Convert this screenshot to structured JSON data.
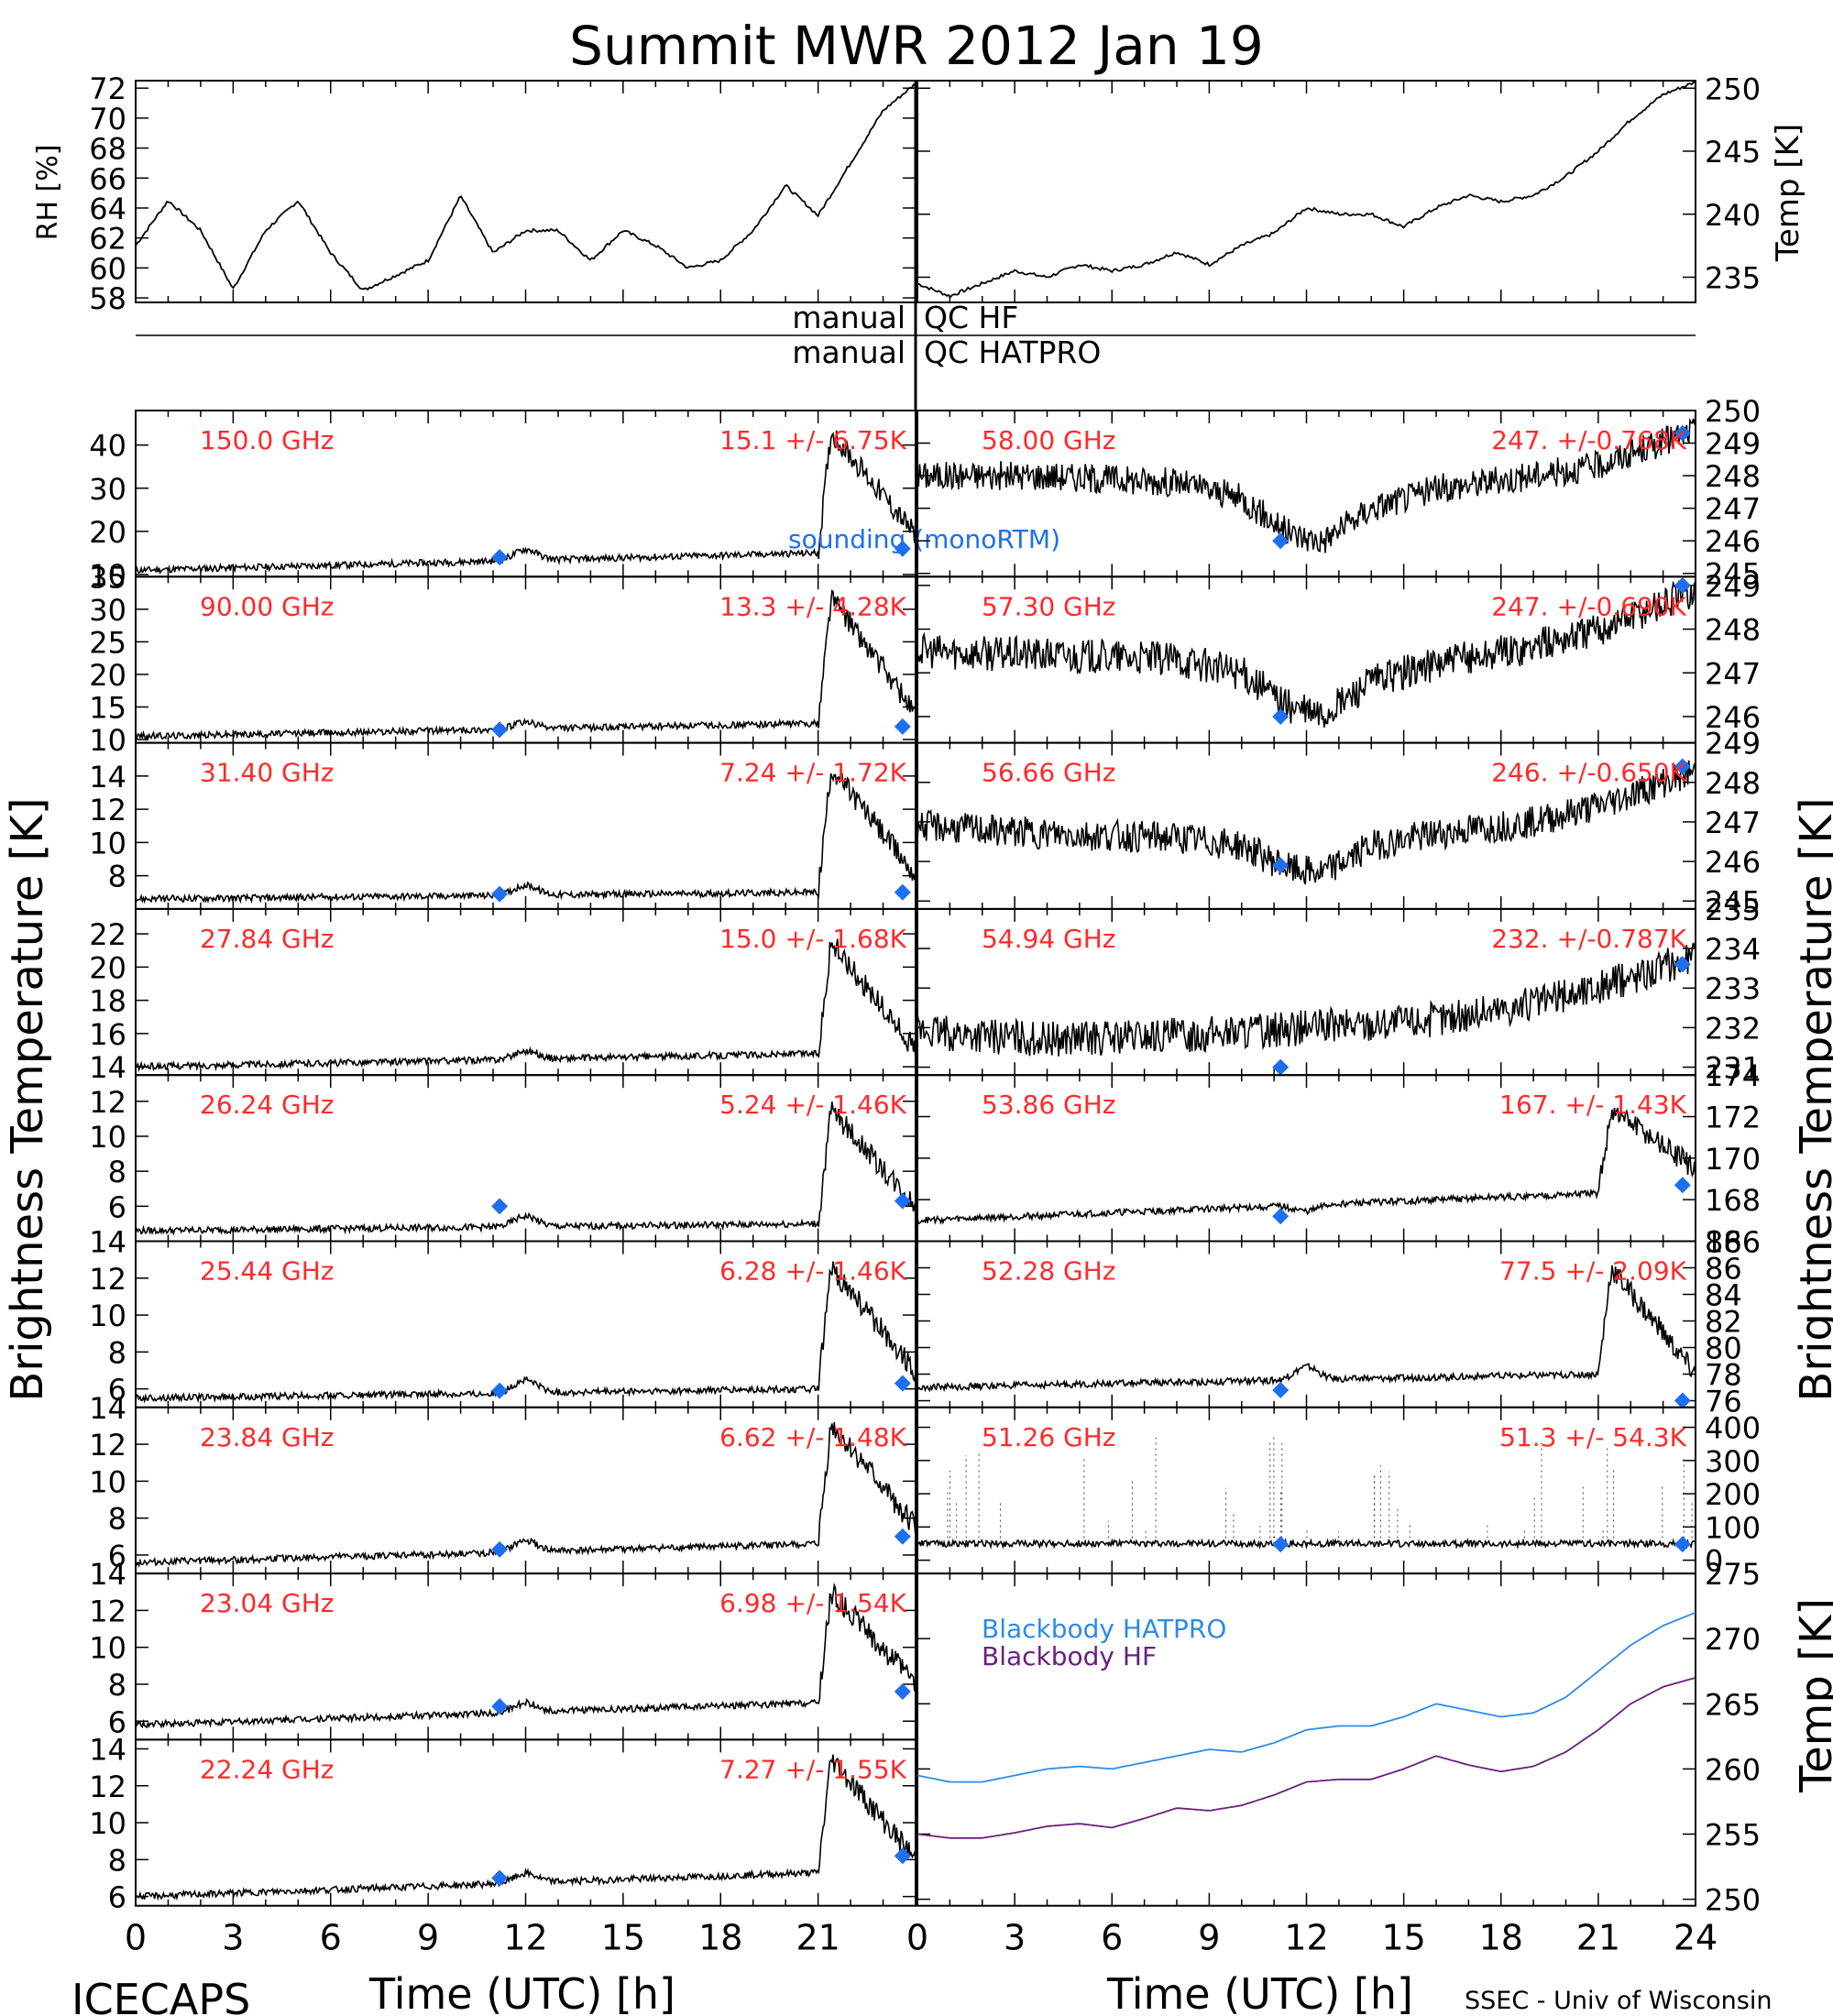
{
  "title": "Summit MWR 2012 Jan 19",
  "footer": {
    "project": "ICECAPS",
    "credit": "SSEC - Univ of Wisconsin"
  },
  "qc": {
    "label_left": "manual",
    "label_left2": "manual",
    "label_hf": "QC HF",
    "label_hatpro": "QC HATPRO"
  },
  "labels": {
    "rh_axis": "RH [%]",
    "temp_axis": "Temp [K]",
    "bt_left": "Brightness Temperature [K]",
    "bt_right": "Brightness Temperature [K]",
    "bb_temp_axis": "Temp [K]",
    "xlabel_left": "Time (UTC) [h]",
    "xlabel_right": "Time (UTC) [h]",
    "sounding_legend": "sounding (monoRTM)"
  },
  "colors": {
    "trace": "#000000",
    "channel_text": "#ff2a2a",
    "sounding": "#1e6ff0",
    "bb_hatpro": "#2d8be8",
    "bb_hf": "#6a1f7e"
  },
  "chart_data": [
    {
      "id": "rh",
      "type": "line",
      "ylabel": "RH [%]",
      "ylim": [
        57.7,
        72.5
      ],
      "yticks": [
        58,
        60,
        62,
        64,
        66,
        68,
        70,
        72
      ],
      "x": [
        0,
        1,
        2,
        3,
        4,
        5,
        6,
        7,
        8,
        9,
        10,
        11,
        12,
        13,
        14,
        15,
        16,
        17,
        18,
        19,
        20,
        21,
        22,
        23,
        24
      ],
      "values": [
        61.5,
        64.5,
        62.5,
        58.6,
        62.5,
        64.5,
        61.0,
        58.5,
        59.5,
        60.5,
        64.8,
        61.0,
        62.5,
        62.5,
        60.5,
        62.5,
        61.5,
        60.0,
        60.5,
        62.5,
        65.5,
        63.5,
        67.0,
        70.5,
        72.3
      ]
    },
    {
      "id": "temp",
      "type": "line",
      "ylabel": "Temp [K]",
      "ylim": [
        233,
        250.6
      ],
      "yticks": [
        235,
        240,
        245,
        250
      ],
      "x": [
        0,
        1,
        2,
        3,
        4,
        5,
        6,
        7,
        8,
        9,
        10,
        11,
        12,
        13,
        14,
        15,
        16,
        17,
        18,
        19,
        20,
        21,
        22,
        23,
        24
      ],
      "values": [
        234.5,
        233.5,
        234.5,
        235.5,
        235.0,
        236.0,
        235.5,
        236.0,
        237.0,
        236.0,
        237.5,
        238.5,
        240.5,
        240.0,
        240.0,
        239.0,
        240.5,
        241.5,
        241.0,
        241.5,
        243.0,
        245.0,
        247.5,
        249.5,
        250.5
      ]
    },
    {
      "id": "ch150",
      "type": "scatter",
      "channel": "150.0 GHz",
      "stats": "15.1 +/- 6.75K",
      "ylim": [
        9.5,
        48
      ],
      "yticks": [
        10,
        20,
        30,
        40
      ],
      "baseline": [
        11,
        15
      ],
      "bump": 17.5,
      "peak": 43,
      "end": 19,
      "sounding": [
        [
          11.2,
          14
        ],
        [
          23.6,
          16
        ]
      ]
    },
    {
      "id": "ch90",
      "type": "scatter",
      "channel": "90.00 GHz",
      "stats": "13.3 +/- 4.28K",
      "ylim": [
        9.5,
        35
      ],
      "yticks": [
        10,
        15,
        20,
        25,
        30,
        35
      ],
      "baseline": [
        10.5,
        12.5
      ],
      "bump": 13.5,
      "peak": 32,
      "end": 14,
      "sounding": [
        [
          11.2,
          11.5
        ],
        [
          23.6,
          12
        ]
      ]
    },
    {
      "id": "ch3140",
      "type": "scatter",
      "channel": "31.40 GHz",
      "stats": "7.24 +/- 1.72K",
      "ylim": [
        6,
        16
      ],
      "yticks": [
        8,
        10,
        12,
        14
      ],
      "baseline": [
        6.6,
        7.0
      ],
      "bump": 7.6,
      "peak": 14.5,
      "end": 8,
      "sounding": [
        [
          11.2,
          6.9
        ],
        [
          23.6,
          7.0
        ]
      ]
    },
    {
      "id": "ch2784",
      "type": "scatter",
      "channel": "27.84 GHz",
      "stats": "15.0 +/- 1.68K",
      "ylim": [
        13.5,
        23.5
      ],
      "yticks": [
        14,
        16,
        18,
        20,
        22
      ],
      "baseline": [
        14,
        14.8
      ],
      "bump": 15.3,
      "peak": 21.5,
      "end": 15,
      "sounding": []
    },
    {
      "id": "ch2624",
      "type": "scatter",
      "channel": "26.24 GHz",
      "stats": "5.24 +/- 1.46K",
      "ylim": [
        4,
        13.5
      ],
      "yticks": [
        6,
        8,
        10,
        12
      ],
      "baseline": [
        4.6,
        5.0
      ],
      "bump": 5.6,
      "peak": 11.5,
      "end": 6,
      "sounding": [
        [
          11.2,
          6.0
        ],
        [
          23.6,
          6.3
        ]
      ]
    },
    {
      "id": "ch2544",
      "type": "scatter",
      "channel": "25.44 GHz",
      "stats": "6.28 +/- 1.46K",
      "ylim": [
        5,
        14
      ],
      "yticks": [
        6,
        8,
        10,
        12,
        14
      ],
      "baseline": [
        5.5,
        6.0
      ],
      "bump": 6.7,
      "peak": 12.5,
      "end": 7,
      "sounding": [
        [
          11.2,
          5.9
        ],
        [
          23.6,
          6.3
        ]
      ]
    },
    {
      "id": "ch2384",
      "type": "scatter",
      "channel": "23.84 GHz",
      "stats": "6.62 +/- 1.48K",
      "ylim": [
        5,
        14
      ],
      "yticks": [
        6,
        8,
        10,
        12,
        14
      ],
      "baseline": [
        5.6,
        6.6
      ],
      "bump": 7.2,
      "peak": 13,
      "end": 7.5,
      "sounding": [
        [
          11.2,
          6.3
        ],
        [
          23.6,
          7.0
        ]
      ]
    },
    {
      "id": "ch2304",
      "type": "scatter",
      "channel": "23.04 GHz",
      "stats": "6.98 +/- 1.54K",
      "ylim": [
        5,
        14
      ],
      "yticks": [
        6,
        8,
        10,
        12,
        14
      ],
      "baseline": [
        5.8,
        7.0
      ],
      "bump": 7.5,
      "peak": 13,
      "end": 8,
      "sounding": [
        [
          11.2,
          6.8
        ],
        [
          23.6,
          7.6
        ]
      ]
    },
    {
      "id": "ch2224",
      "type": "scatter",
      "channel": "22.24 GHz",
      "stats": "7.27 +/- 1.55K",
      "ylim": [
        5.5,
        14.5
      ],
      "yticks": [
        6,
        8,
        10,
        12,
        14
      ],
      "baseline": [
        6.0,
        7.3
      ],
      "bump": 7.8,
      "peak": 13.5,
      "end": 8,
      "sounding": [
        [
          11.2,
          7.0
        ],
        [
          23.6,
          8.2
        ]
      ]
    },
    {
      "id": "ch5800",
      "type": "scatter",
      "channel": "58.00 GHz",
      "stats": "247. +/-0.768K",
      "ylim": [
        244.9,
        250
      ],
      "yticks": [
        245,
        246,
        247,
        248,
        249,
        250
      ],
      "profile": [
        [
          0,
          248
        ],
        [
          4,
          248
        ],
        [
          8,
          247.8
        ],
        [
          10,
          247.3
        ],
        [
          11.5,
          246.2
        ],
        [
          12.5,
          246
        ],
        [
          14,
          247
        ],
        [
          16,
          247.6
        ],
        [
          19,
          248
        ],
        [
          21,
          248.3
        ],
        [
          24,
          249.4
        ]
      ],
      "noise": 0.45,
      "sounding": [
        [
          11.2,
          246
        ],
        [
          23.6,
          249.3
        ]
      ]
    },
    {
      "id": "ch5730",
      "type": "scatter",
      "channel": "57.30 GHz",
      "stats": "247. +/-0.690K",
      "ylim": [
        245.4,
        249.2
      ],
      "yticks": [
        246,
        247,
        248,
        249
      ],
      "profile": [
        [
          0,
          247.5
        ],
        [
          4,
          247.4
        ],
        [
          8,
          247.3
        ],
        [
          10,
          247
        ],
        [
          11.5,
          246.2
        ],
        [
          12.5,
          246
        ],
        [
          14,
          246.8
        ],
        [
          16,
          247.2
        ],
        [
          19,
          247.6
        ],
        [
          21,
          248
        ],
        [
          24,
          248.9
        ]
      ],
      "noise": 0.4,
      "sounding": [
        [
          11.2,
          246
        ],
        [
          23.6,
          249
        ]
      ]
    },
    {
      "id": "ch5666",
      "type": "scatter",
      "channel": "56.66 GHz",
      "stats": "246. +/-0.650K",
      "ylim": [
        244.8,
        249
      ],
      "yticks": [
        245,
        246,
        247,
        248,
        249
      ],
      "profile": [
        [
          0,
          246.9
        ],
        [
          4,
          246.7
        ],
        [
          8,
          246.6
        ],
        [
          10,
          246.4
        ],
        [
          11.5,
          245.8
        ],
        [
          12.5,
          245.7
        ],
        [
          14,
          246.4
        ],
        [
          16,
          246.7
        ],
        [
          19,
          247
        ],
        [
          21,
          247.4
        ],
        [
          24,
          248.3
        ]
      ],
      "noise": 0.4,
      "sounding": [
        [
          11.2,
          245.9
        ],
        [
          23.6,
          248.4
        ]
      ]
    },
    {
      "id": "ch5494",
      "type": "scatter",
      "channel": "54.94 GHz",
      "stats": "232. +/-0.787K",
      "ylim": [
        230.8,
        235
      ],
      "yticks": [
        231,
        232,
        233,
        234,
        235
      ],
      "profile": [
        [
          0,
          231.9
        ],
        [
          4,
          231.7
        ],
        [
          8,
          231.8
        ],
        [
          12,
          232
        ],
        [
          16,
          232.2
        ],
        [
          19,
          232.6
        ],
        [
          21,
          233
        ],
        [
          24,
          233.8
        ]
      ],
      "noise": 0.45,
      "sounding": [
        [
          11.2,
          231
        ],
        [
          23.6,
          233.6
        ]
      ]
    },
    {
      "id": "ch5386",
      "type": "scatter",
      "channel": "53.86 GHz",
      "stats": "167. +/- 1.43K",
      "ylim": [
        166,
        174
      ],
      "yticks": [
        166,
        168,
        170,
        172,
        174
      ],
      "baseline": [
        167,
        168.3
      ],
      "bump": 168,
      "peak": 172.3,
      "end": 169.5,
      "sounding": [
        [
          11.2,
          167.2
        ],
        [
          23.6,
          168.7
        ]
      ]
    },
    {
      "id": "ch5228",
      "type": "scatter",
      "channel": "52.28 GHz",
      "stats": "77.5 +/- 2.09K",
      "ylim": [
        75.5,
        88
      ],
      "yticks": [
        76,
        78,
        80,
        82,
        84,
        86,
        88
      ],
      "baseline": [
        77,
        78
      ],
      "bump": 79,
      "peak": 86,
      "end": 78,
      "sounding": [
        [
          11.2,
          76.8
        ],
        [
          23.6,
          76
        ]
      ]
    },
    {
      "id": "ch5126",
      "type": "scatter",
      "channel": "51.26 GHz",
      "stats": "51.3 +/- 54.3K",
      "ylim": [
        -40,
        460
      ],
      "yticks": [
        0,
        100,
        200,
        300,
        400
      ],
      "flat": 50,
      "sounding": [
        [
          11.2,
          48
        ],
        [
          23.6,
          48
        ]
      ]
    },
    {
      "id": "blackbody",
      "type": "line",
      "ylabel": "Temp [K]",
      "ylim": [
        249.5,
        275
      ],
      "yticks": [
        250,
        255,
        260,
        265,
        270,
        275
      ],
      "x": [
        0,
        1,
        2,
        3,
        4,
        5,
        6,
        7,
        8,
        9,
        10,
        11,
        12,
        13,
        14,
        15,
        16,
        17,
        18,
        19,
        20,
        21,
        22,
        23,
        24
      ],
      "series": [
        {
          "name": "Blackbody HATPRO",
          "values": [
            259.5,
            259.0,
            259.0,
            259.5,
            260.0,
            260.2,
            260.0,
            260.5,
            261.0,
            261.5,
            261.3,
            262.0,
            263.0,
            263.3,
            263.3,
            264.0,
            265.0,
            264.5,
            264.0,
            264.3,
            265.5,
            267.5,
            269.5,
            271.0,
            272.0
          ]
        },
        {
          "name": "Blackbody HF",
          "values": [
            255.0,
            254.7,
            254.7,
            255.1,
            255.6,
            255.8,
            255.5,
            256.2,
            257.0,
            256.8,
            257.2,
            258.0,
            259.0,
            259.2,
            259.2,
            260.0,
            261.0,
            260.3,
            259.8,
            260.2,
            261.3,
            263.0,
            265.0,
            266.3,
            267.0
          ]
        }
      ]
    }
  ]
}
